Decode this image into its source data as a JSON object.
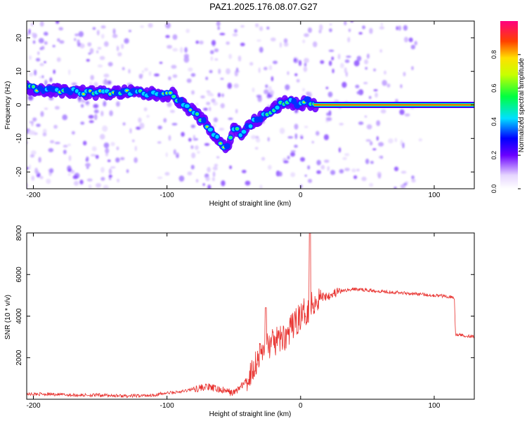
{
  "title": "PAZ1.2025.176.08.07.G27",
  "chart_data": [
    {
      "type": "heatmap",
      "xlabel": "Height of straight line (km)",
      "ylabel": "Frequency (Hz)",
      "xlim": [
        -205,
        130
      ],
      "ylim": [
        -25,
        25
      ],
      "xticks": [
        -200,
        -100,
        0,
        100
      ],
      "yticks": [
        -20,
        -10,
        0,
        10,
        20
      ],
      "colorbar": {
        "label": "Normalized spectral amplitude",
        "ticks": [
          "0.0",
          "0.2",
          "0.4",
          "0.6",
          "0.8"
        ],
        "range": [
          0,
          1
        ]
      },
      "ridge": {
        "x": [
          -205,
          -190,
          -170,
          -150,
          -130,
          -110,
          -95,
          -88,
          -80,
          -75,
          -70,
          -65,
          -60,
          -55,
          -50,
          -45,
          -40,
          -35,
          -30,
          -25,
          -20,
          -15,
          -10,
          -5,
          0,
          5,
          10,
          130
        ],
        "y": [
          5,
          4.5,
          4,
          3.5,
          3.8,
          3.2,
          3,
          0,
          -2,
          -4,
          -6,
          -9,
          -11,
          -13,
          -7,
          -8.5,
          -7,
          -5,
          -4,
          -2.5,
          -1,
          0,
          1,
          0.5,
          0,
          1,
          0,
          0
        ]
      },
      "stable_band": {
        "x_start": 10,
        "x_end": 130,
        "y": 0
      }
    },
    {
      "type": "line",
      "xlabel": "Height of straight line (km)",
      "ylabel": "SNR (10 * v/v)",
      "xlim": [
        -205,
        130
      ],
      "ylim": [
        0,
        8000
      ],
      "xticks": [
        -200,
        -100,
        0,
        100
      ],
      "yticks": [
        2000,
        4000,
        6000,
        8000
      ],
      "series": [
        {
          "color": "#e8312e",
          "x": [
            -205,
            -190,
            -170,
            -150,
            -130,
            -110,
            -100,
            -90,
            -80,
            -70,
            -60,
            -50,
            -40,
            -35,
            -30,
            -25,
            -20,
            -15,
            -10,
            -5,
            0,
            5,
            10,
            15,
            20,
            30,
            40,
            50,
            60,
            70,
            80,
            90,
            100,
            110,
            115,
            116,
            118,
            125,
            130
          ],
          "y": [
            250,
            250,
            200,
            200,
            150,
            200,
            300,
            350,
            500,
            600,
            450,
            300,
            900,
            1600,
            2200,
            2600,
            2700,
            2900,
            3100,
            3600,
            4000,
            4300,
            4700,
            4900,
            5000,
            5200,
            5300,
            5250,
            5200,
            5150,
            5100,
            5050,
            5000,
            4950,
            4900,
            3100,
            3100,
            3050,
            3000
          ]
        }
      ]
    }
  ]
}
